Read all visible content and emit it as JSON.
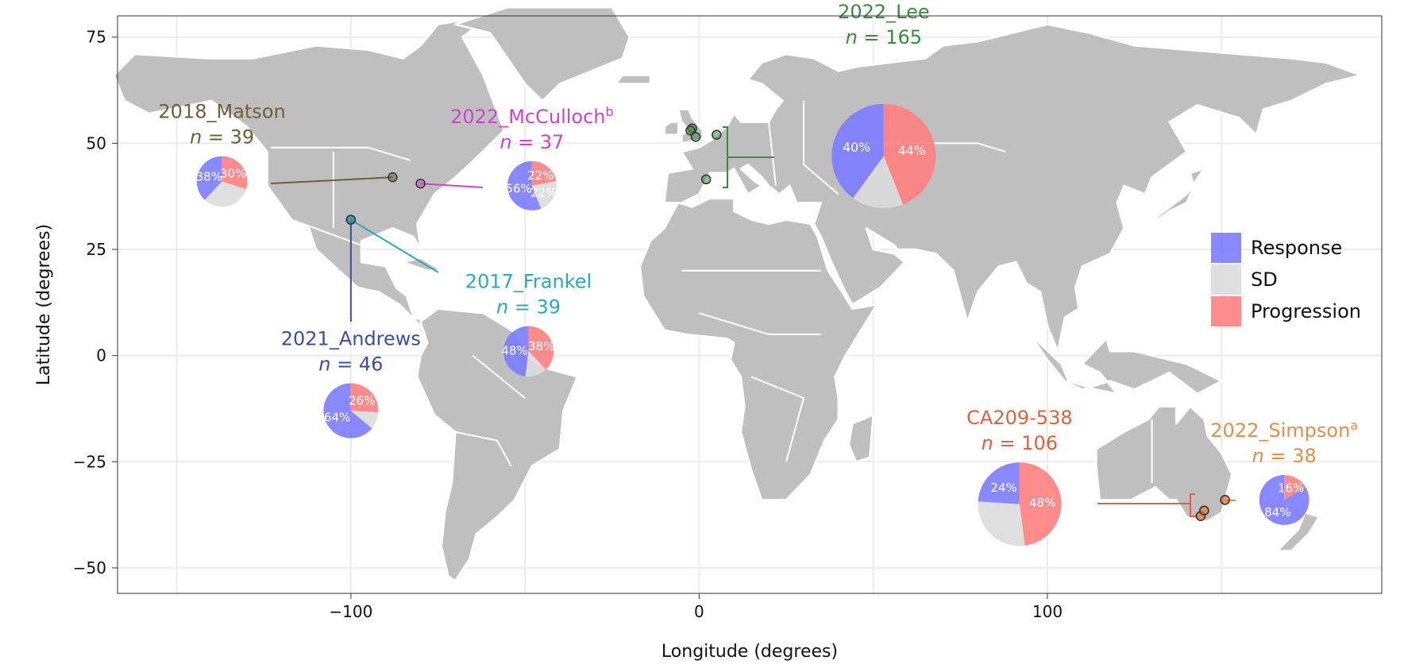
{
  "chart_data": {
    "type": "pie-map",
    "xlabel": "Longitude (degrees)",
    "ylabel": "Latitude (degrees)",
    "xlim": [
      -167,
      196
    ],
    "ylim": [
      -56,
      80
    ],
    "x_ticks": [
      -100,
      0,
      100
    ],
    "x_tick_labels": [
      "−100",
      "0",
      "100"
    ],
    "y_ticks": [
      75,
      50,
      25,
      0,
      -25,
      -50
    ],
    "y_tick_labels": [
      "75",
      "50",
      "25",
      "0",
      "−25",
      "−50"
    ],
    "grid": true,
    "legend_position": "right",
    "categories": [
      "Response",
      "SD",
      "Progression"
    ],
    "colors": {
      "Response": "#7b7bff",
      "SD": "#dcdcdc",
      "Progression": "#ff7f7f",
      "land": "#bfbfbf",
      "border": "#ffffff"
    },
    "studies": [
      {
        "name": "2018_Matson",
        "n_label": "39",
        "sup": "",
        "color": "#6e6137",
        "sites": [
          [
            -88,
            42
          ]
        ],
        "pie_center": [
          -137,
          41
        ],
        "response": 38,
        "sd": 32,
        "progression": 30,
        "response_label": "38%",
        "progression_label": "30%"
      },
      {
        "name": "2022_McCulloch",
        "n_label": "37",
        "sup": "b",
        "color": "#cc44cc",
        "sites": [
          [
            -80,
            40.5
          ]
        ],
        "pie_center": [
          -48,
          40
        ],
        "response": 56,
        "sd": 22,
        "progression": 22,
        "response_label": "56%",
        "sd_label": "22%",
        "progression_label": "22%"
      },
      {
        "name": "2022_Lee",
        "n_label": "165",
        "sup": "",
        "color": "#3d8b3d",
        "sites": [
          [
            -2,
            53.5
          ],
          [
            -1,
            51.5
          ],
          [
            5,
            52
          ],
          [
            2,
            41.5
          ],
          [
            -2.5,
            53
          ]
        ],
        "pie_center": [
          53,
          47
        ],
        "response": 40,
        "sd": 16,
        "progression": 44,
        "response_label": "40%",
        "progression_label": "44%"
      },
      {
        "name": "2021_Andrews",
        "n_label": "46",
        "sup": "",
        "color": "#3a4f9e",
        "sites": [
          [
            -100,
            32
          ]
        ],
        "pie_center": [
          -100,
          -13
        ],
        "response": 64,
        "sd": 10,
        "progression": 26,
        "response_label": "64%",
        "progression_label": "26%"
      },
      {
        "name": "2017_Frankel",
        "n_label": "39",
        "sup": "",
        "color": "#2aa9b9",
        "sites": [
          [
            -100,
            32
          ]
        ],
        "pie_center": [
          -49,
          1
        ],
        "response": 48,
        "sd": 14,
        "progression": 38,
        "response_label": "48%",
        "progression_label": "38%"
      },
      {
        "name": "CA209-538",
        "n_label": "106",
        "sup": "",
        "color": "#e0613c",
        "sites": [
          [
            144,
            -37.8
          ],
          [
            145,
            -36.5
          ],
          [
            151,
            -34
          ]
        ],
        "pie_center": [
          92,
          -35
        ],
        "response": 24,
        "sd": 28,
        "progression": 48,
        "response_label": "24%",
        "progression_label": "48%"
      },
      {
        "name": "2022_Simpson",
        "n_label": "38",
        "sup": "a",
        "color": "#e38f4c",
        "sites": [
          [
            144,
            -37.8
          ],
          [
            145,
            -36.5
          ],
          [
            151,
            -34
          ]
        ],
        "pie_center": [
          168,
          -34
        ],
        "response": 84,
        "sd": 0,
        "progression": 16,
        "response_label": "84%",
        "progression_label": "16%"
      }
    ]
  }
}
